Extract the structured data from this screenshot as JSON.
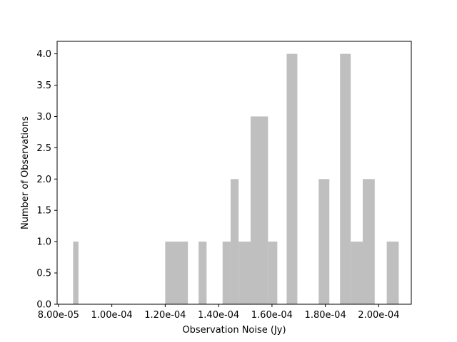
{
  "chart_data": {
    "type": "bar",
    "title": "",
    "xlabel": "Observation Noise (Jy)",
    "ylabel": "Number of Observations",
    "xlim": [
      7.95e-05,
      0.0002122
    ],
    "ylim": [
      0,
      4.2
    ],
    "bar_color": "#bfbfbf",
    "grid": false,
    "x_ticks": [
      {
        "value": 8e-05,
        "label": "8.00e-05"
      },
      {
        "value": 0.0001,
        "label": "1.00e-04"
      },
      {
        "value": 0.00012,
        "label": "1.20e-04"
      },
      {
        "value": 0.00014,
        "label": "1.40e-04"
      },
      {
        "value": 0.00016,
        "label": "1.60e-04"
      },
      {
        "value": 0.00018,
        "label": "1.80e-04"
      },
      {
        "value": 0.0002,
        "label": "2.00e-04"
      }
    ],
    "y_ticks": [
      {
        "value": 0.0,
        "label": "0.0"
      },
      {
        "value": 0.5,
        "label": "0.5"
      },
      {
        "value": 1.0,
        "label": "1.0"
      },
      {
        "value": 1.5,
        "label": "1.5"
      },
      {
        "value": 2.0,
        "label": "2.0"
      },
      {
        "value": 2.5,
        "label": "2.5"
      },
      {
        "value": 3.0,
        "label": "3.0"
      },
      {
        "value": 3.5,
        "label": "3.5"
      },
      {
        "value": 4.0,
        "label": "4.0"
      }
    ],
    "bins": [
      {
        "x0": 8.55e-05,
        "x1": 8.75e-05,
        "count": 1
      },
      {
        "x0": 0.00012,
        "x1": 0.0001285,
        "count": 1
      },
      {
        "x0": 0.0001325,
        "x1": 0.0001355,
        "count": 1
      },
      {
        "x0": 0.0001415,
        "x1": 0.0001445,
        "count": 1
      },
      {
        "x0": 0.0001445,
        "x1": 0.0001475,
        "count": 2
      },
      {
        "x0": 0.0001475,
        "x1": 0.000152,
        "count": 1
      },
      {
        "x0": 0.000152,
        "x1": 0.0001585,
        "count": 3
      },
      {
        "x0": 0.0001585,
        "x1": 0.000162,
        "count": 1
      },
      {
        "x0": 0.0001655,
        "x1": 0.0001695,
        "count": 4
      },
      {
        "x0": 0.0001775,
        "x1": 0.0001815,
        "count": 2
      },
      {
        "x0": 0.0001855,
        "x1": 0.0001895,
        "count": 4
      },
      {
        "x0": 0.0001895,
        "x1": 0.000194,
        "count": 1
      },
      {
        "x0": 0.000194,
        "x1": 0.0001985,
        "count": 2
      },
      {
        "x0": 0.000203,
        "x1": 0.0002075,
        "count": 1
      }
    ]
  }
}
